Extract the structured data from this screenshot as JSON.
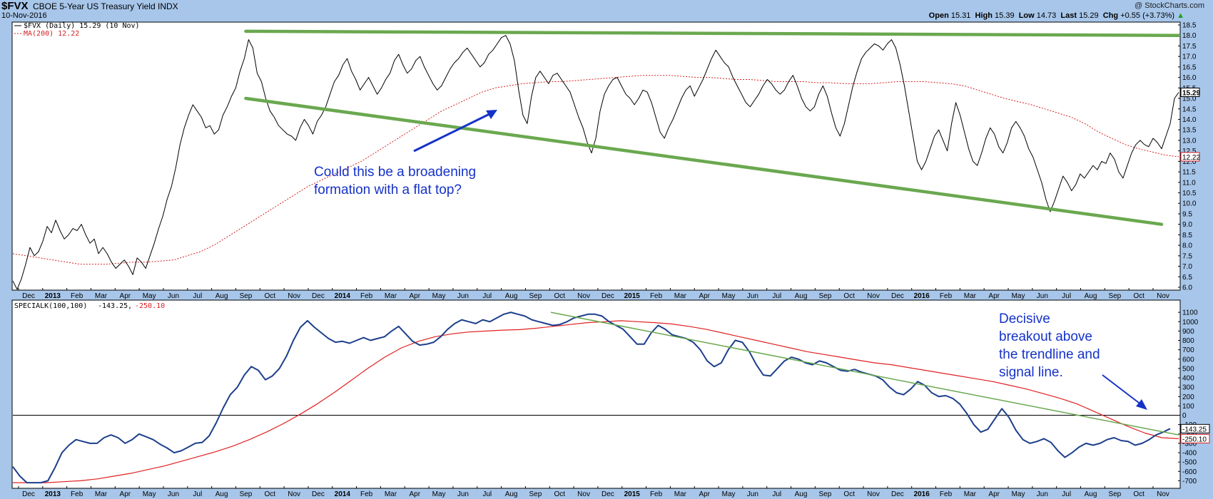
{
  "header": {
    "symbol": "$FVX",
    "name": "CBOE 5-Year US Treasury Yield",
    "exchange": "INDX",
    "date": "10-Nov-2016",
    "copyright": "@ StockCharts.com",
    "open_label": "Open",
    "open": "15.31",
    "high_label": "High",
    "high": "15.39",
    "low_label": "Low",
    "low": "14.73",
    "last_label": "Last",
    "last": "15.29",
    "chg_label": "Chg",
    "chg": "+0.55 (+3.73%)",
    "chg_arrow": "▲"
  },
  "colors": {
    "background": "#a7c6ea",
    "panel": "#ffffff",
    "price": "#000000",
    "ma": "#d62020",
    "trend": "#6aa84f",
    "special": "#1c3f8c",
    "signal": "#e02020",
    "annotation": "#1532c8"
  },
  "chart_data": [
    {
      "type": "line",
      "legend": [
        "$FVX (Daily) 15.29 (10 Nov)",
        "MA(200) 12.22"
      ],
      "price_badge": "15.29",
      "ma_badge": "12.22",
      "y_ticks": [
        "6.0",
        "6.5",
        "7.0",
        "7.5",
        "8.0",
        "8.5",
        "9.0",
        "9.5",
        "10.0",
        "10.5",
        "11.0",
        "11.5",
        "12.0",
        "12.5",
        "13.0",
        "13.5",
        "14.0",
        "14.5",
        "15.0",
        "15.5",
        "16.0",
        "16.5",
        "17.0",
        "17.5",
        "18.0",
        "18.5"
      ],
      "ylim": [
        6.0,
        18.5
      ],
      "x_labels": [
        "Dec",
        "2013",
        "Feb",
        "Mar",
        "Apr",
        "May",
        "Jun",
        "Jul",
        "Aug",
        "Sep",
        "Oct",
        "Nov",
        "Dec",
        "2014",
        "Feb",
        "Mar",
        "Apr",
        "May",
        "Jun",
        "Jul",
        "Aug",
        "Sep",
        "Oct",
        "Nov",
        "Dec",
        "2015",
        "Feb",
        "Mar",
        "Apr",
        "May",
        "Jun",
        "Jul",
        "Aug",
        "Sep",
        "Oct",
        "Nov",
        "Dec",
        "2016",
        "Feb",
        "Mar",
        "Apr",
        "May",
        "Jun",
        "Jul",
        "Aug",
        "Sep",
        "Oct",
        "Nov"
      ],
      "series": [
        {
          "name": "$FVX",
          "values": [
            6.3,
            5.9,
            6.4,
            7.1,
            7.9,
            7.5,
            7.7,
            8.2,
            8.9,
            8.6,
            9.2,
            8.7,
            8.3,
            8.5,
            8.8,
            8.7,
            9.0,
            8.5,
            8.1,
            8.3,
            7.6,
            7.9,
            7.6,
            7.2,
            6.9,
            7.1,
            7.3,
            7.0,
            6.6,
            7.4,
            7.2,
            6.9,
            7.5,
            8.1,
            8.8,
            9.4,
            10.2,
            10.8,
            11.7,
            12.8,
            13.6,
            14.2,
            14.7,
            14.4,
            14.1,
            13.6,
            13.7,
            13.3,
            13.5,
            14.2,
            14.6,
            15.1,
            15.5,
            16.3,
            16.9,
            17.8,
            17.4,
            16.2,
            15.8,
            15.0,
            14.4,
            14.1,
            13.7,
            13.5,
            13.3,
            13.2,
            13.0,
            13.6,
            14.0,
            13.7,
            13.3,
            13.9,
            14.2,
            14.6,
            15.2,
            15.8,
            16.1,
            16.6,
            16.9,
            16.3,
            15.9,
            15.4,
            15.7,
            16.0,
            15.6,
            15.2,
            15.5,
            15.9,
            16.2,
            16.8,
            17.1,
            16.6,
            16.2,
            16.4,
            16.8,
            17.0,
            16.5,
            16.1,
            15.7,
            15.4,
            15.6,
            16.0,
            16.4,
            16.7,
            16.9,
            17.2,
            17.4,
            17.1,
            16.8,
            16.5,
            16.7,
            17.1,
            17.3,
            17.6,
            17.9,
            18.0,
            17.6,
            16.8,
            15.4,
            14.2,
            13.8,
            15.1,
            16.0,
            16.3,
            16.0,
            15.7,
            16.1,
            16.2,
            15.9,
            15.6,
            15.3,
            14.7,
            14.1,
            13.6,
            12.9,
            12.4,
            13.1,
            14.4,
            15.2,
            15.6,
            15.9,
            16.0,
            15.6,
            15.2,
            15.0,
            14.7,
            15.0,
            15.4,
            15.3,
            14.8,
            14.1,
            13.4,
            13.1,
            13.6,
            14.0,
            14.5,
            15.0,
            15.4,
            15.6,
            15.1,
            15.5,
            15.9,
            16.4,
            16.9,
            17.3,
            17.0,
            16.7,
            16.5,
            16.0,
            15.6,
            15.2,
            14.8,
            14.6,
            14.9,
            15.2,
            15.6,
            15.9,
            15.7,
            15.4,
            15.2,
            15.4,
            15.8,
            16.1,
            15.6,
            15.0,
            14.6,
            14.4,
            14.6,
            15.2,
            15.6,
            15.1,
            14.3,
            13.6,
            13.2,
            13.8,
            14.7,
            15.6,
            16.3,
            16.9,
            17.2,
            17.4,
            17.6,
            17.5,
            17.3,
            17.6,
            17.8,
            17.4,
            16.6,
            15.6,
            14.4,
            13.2,
            12.0,
            11.6,
            12.0,
            12.6,
            13.2,
            13.5,
            13.0,
            12.5,
            13.8,
            14.8,
            14.2,
            13.4,
            12.6,
            12.0,
            11.8,
            12.4,
            13.1,
            13.6,
            13.3,
            12.7,
            12.4,
            12.9,
            13.6,
            13.9,
            13.6,
            13.2,
            12.6,
            12.2,
            11.6,
            11.0,
            10.2,
            9.6,
            10.1,
            10.7,
            11.3,
            11.0,
            10.6,
            10.9,
            11.4,
            11.2,
            11.5,
            11.8,
            11.6,
            12.0,
            11.9,
            12.4,
            12.1,
            11.5,
            11.2,
            11.8,
            12.4,
            12.8,
            13.0,
            12.8,
            12.7,
            13.1,
            12.9,
            12.6,
            13.2,
            13.8,
            15.0,
            15.29
          ]
        },
        {
          "name": "MA(200)",
          "values": [
            7.6,
            7.5,
            7.4,
            7.3,
            7.2,
            7.1,
            7.1,
            7.1,
            7.15,
            7.2,
            7.2,
            7.25,
            7.3,
            7.5,
            7.7,
            8.0,
            8.4,
            8.8,
            9.2,
            9.6,
            10.0,
            10.4,
            10.8,
            11.1,
            11.4,
            11.7,
            12.0,
            12.4,
            12.8,
            13.2,
            13.6,
            14.0,
            14.4,
            14.7,
            15.0,
            15.3,
            15.5,
            15.6,
            15.7,
            15.75,
            15.8,
            15.8,
            15.85,
            15.9,
            15.95,
            16.0,
            16.05,
            16.1,
            16.1,
            16.1,
            16.05,
            16.0,
            16.0,
            15.95,
            15.9,
            15.9,
            15.85,
            15.8,
            15.8,
            15.8,
            15.75,
            15.75,
            15.7,
            15.7,
            15.7,
            15.75,
            15.8,
            15.8,
            15.8,
            15.75,
            15.7,
            15.6,
            15.4,
            15.2,
            15.0,
            14.85,
            14.7,
            14.5,
            14.3,
            14.1,
            13.8,
            13.4,
            13.1,
            12.8,
            12.6,
            12.45,
            12.3,
            12.22
          ]
        }
      ],
      "trendlines": [
        {
          "name": "flat-top",
          "from": [
            "Sep 2013",
            18.2
          ],
          "to": [
            "Nov 2016",
            18.0
          ]
        },
        {
          "name": "lower-boundary",
          "from": [
            "Sep 2013",
            15.0
          ],
          "to": [
            "Nov 2016",
            9.0
          ]
        }
      ],
      "annotation": [
        "Could this be a broadening",
        "formation with a flat top?"
      ]
    },
    {
      "type": "line",
      "legend": [
        "SPECIALK(100,100)",
        "-143.25,",
        "-250.10"
      ],
      "badge_a": "-143.25",
      "badge_b": "-250.10",
      "y_ticks": [
        "1100",
        "1000",
        "900",
        "800",
        "700",
        "600",
        "500",
        "400",
        "300",
        "200",
        "100",
        "0",
        "-100",
        "-200",
        "-300",
        "-400",
        "-500",
        "-600",
        "-700"
      ],
      "ylim": [
        -750,
        1200
      ],
      "series": [
        {
          "name": "SPECIALK",
          "values": [
            -550,
            -650,
            -720,
            -720,
            -720,
            -700,
            -560,
            -400,
            -320,
            -260,
            -280,
            -300,
            -300,
            -240,
            -210,
            -240,
            -300,
            -260,
            -200,
            -230,
            -260,
            -310,
            -350,
            -400,
            -380,
            -340,
            -300,
            -290,
            -220,
            -80,
            80,
            220,
            300,
            430,
            520,
            480,
            380,
            420,
            500,
            630,
            800,
            940,
            1010,
            940,
            880,
            820,
            780,
            790,
            770,
            800,
            830,
            800,
            820,
            840,
            900,
            950,
            870,
            790,
            750,
            760,
            780,
            840,
            920,
            980,
            1020,
            1000,
            980,
            1020,
            1000,
            1040,
            1080,
            1100,
            1080,
            1060,
            1020,
            1000,
            980,
            960,
            970,
            1000,
            1040,
            1060,
            1080,
            1080,
            1060,
            1000,
            960,
            920,
            840,
            760,
            760,
            880,
            960,
            920,
            860,
            840,
            820,
            780,
            700,
            580,
            520,
            560,
            700,
            800,
            780,
            680,
            540,
            430,
            420,
            500,
            580,
            620,
            600,
            560,
            540,
            580,
            560,
            520,
            480,
            470,
            490,
            460,
            440,
            420,
            380,
            300,
            240,
            220,
            280,
            360,
            320,
            240,
            200,
            210,
            180,
            120,
            20,
            -100,
            -180,
            -150,
            -40,
            70,
            -20,
            -160,
            -260,
            -300,
            -280,
            -250,
            -290,
            -380,
            -450,
            -400,
            -340,
            -300,
            -320,
            -300,
            -260,
            -240,
            -270,
            -280,
            -320,
            -300,
            -260,
            -210,
            -180,
            -143
          ]
        },
        {
          "name": "Signal",
          "values": [
            -720,
            -720,
            -720,
            -710,
            -700,
            -680,
            -650,
            -620,
            -580,
            -540,
            -490,
            -440,
            -390,
            -330,
            -260,
            -180,
            -90,
            10,
            120,
            240,
            370,
            500,
            620,
            720,
            790,
            840,
            870,
            890,
            900,
            910,
            915,
            930,
            950,
            970,
            990,
            1000,
            1010,
            1000,
            990,
            975,
            950,
            920,
            880,
            840,
            800,
            760,
            720,
            680,
            650,
            620,
            590,
            560,
            540,
            510,
            480,
            450,
            420,
            390,
            360,
            320,
            280,
            230,
            180,
            120,
            40,
            -40,
            -120,
            -190,
            -240,
            -250
          ]
        }
      ],
      "trendline": {
        "from": [
          "Oct 2014",
          1100
        ],
        "to": [
          "Nov 2016",
          -210
        ]
      },
      "annotation": [
        "Decisive",
        "breakout above",
        "the trendline and",
        "signal line."
      ]
    }
  ]
}
